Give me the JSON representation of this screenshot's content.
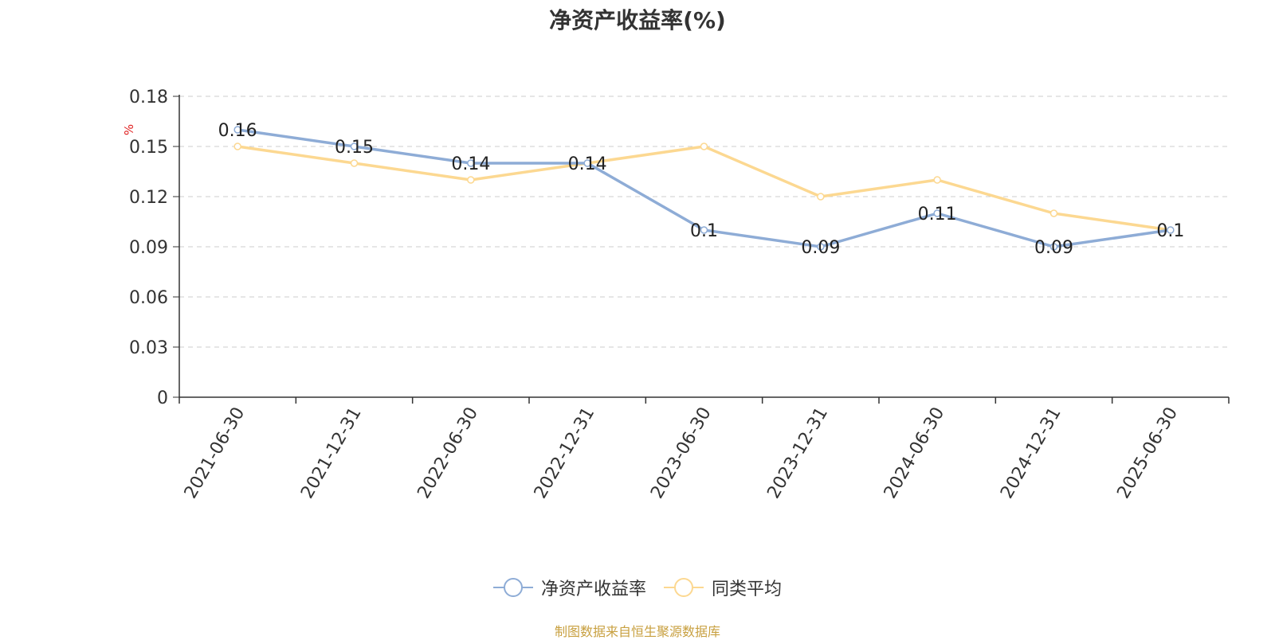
{
  "chart_data": {
    "type": "line",
    "title": "净资产收益率(%)",
    "ylabel": "%",
    "xlabel": "",
    "categories": [
      "2021-06-30",
      "2021-12-31",
      "2022-06-30",
      "2022-12-31",
      "2023-06-30",
      "2023-12-31",
      "2024-06-30",
      "2024-12-31",
      "2025-06-30"
    ],
    "series": [
      {
        "name": "净资产收益率",
        "color": "#8eacd6",
        "values": [
          0.16,
          0.15,
          0.14,
          0.14,
          0.1,
          0.09,
          0.11,
          0.09,
          0.1
        ],
        "labels": [
          "0.16",
          "0.15",
          "0.14",
          "0.14",
          "0.1",
          "0.09",
          "0.11",
          "0.09",
          "0.1"
        ]
      },
      {
        "name": "同类平均",
        "color": "#fcd891",
        "values": [
          0.15,
          0.14,
          0.13,
          0.14,
          0.15,
          0.12,
          0.13,
          0.11,
          0.1
        ]
      }
    ],
    "ylim": [
      0,
      0.18
    ],
    "yticks": [
      "0",
      "0.03",
      "0.06",
      "0.09",
      "0.12",
      "0.15",
      "0.18"
    ],
    "grid": true,
    "legend_position": "bottom"
  },
  "source_note": "制图数据来自恒生聚源数据库"
}
